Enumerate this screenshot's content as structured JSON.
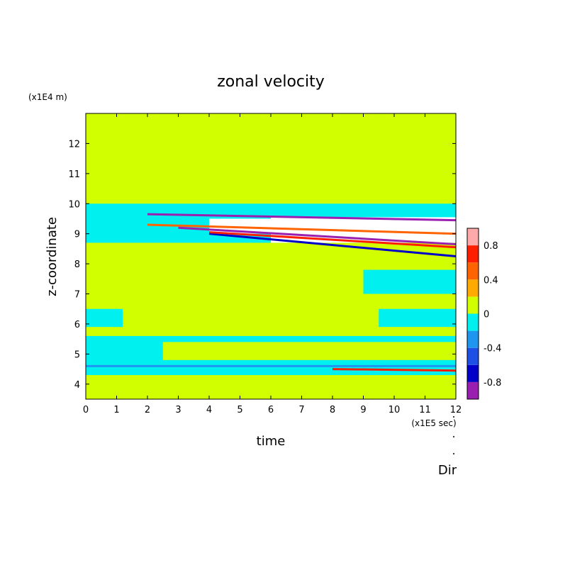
{
  "chart_data": {
    "type": "heatmap",
    "title": "zonal velocity",
    "xlabel": "time",
    "ylabel": "z-coordinate",
    "x_unit": "(x1E5 sec)",
    "y_unit": "(x1E4 m)",
    "xlim": [
      0,
      12
    ],
    "ylim": [
      3.5,
      13
    ],
    "x_ticks": [
      "0",
      "1",
      "2",
      "3",
      "4",
      "5",
      "6",
      "7",
      "8",
      "9",
      "10",
      "11",
      "12"
    ],
    "y_ticks": [
      "4",
      "5",
      "6",
      "7",
      "8",
      "9",
      "10",
      "11",
      "12"
    ],
    "colorbar": {
      "levels": [
        -1.0,
        -0.8,
        -0.6,
        -0.4,
        -0.2,
        0,
        0.2,
        0.4,
        0.6,
        0.8,
        1.0
      ],
      "colors": [
        "#9a1fb0",
        "#0000c8",
        "#1e50e6",
        "#1e96f0",
        "#00f0f0",
        "#d2ff00",
        "#ffaa00",
        "#ff6400",
        "#ff1e00",
        "#ffaaaa"
      ],
      "tick_labels": [
        "0.8",
        "0.4",
        "0",
        "-0.4",
        "-0.8"
      ],
      "tick_values": [
        0.8,
        0.4,
        0,
        -0.4,
        -0.8
      ]
    },
    "regions": [
      {
        "x": [
          0,
          12
        ],
        "z": [
          3.5,
          13
        ],
        "value": 0.1
      },
      {
        "x": [
          0,
          12
        ],
        "z": [
          4.3,
          4.6
        ],
        "value": -0.1
      },
      {
        "x": [
          0,
          12
        ],
        "z": [
          4.6,
          5.6
        ],
        "value": -0.1
      },
      {
        "x": [
          2.5,
          12
        ],
        "z": [
          4.8,
          5.4
        ],
        "value": 0.1
      },
      {
        "x": [
          0,
          12
        ],
        "z": [
          8.7,
          10.0
        ],
        "value": -0.1
      },
      {
        "x": [
          9.0,
          12
        ],
        "z": [
          7.0,
          7.8
        ],
        "value": -0.1
      },
      {
        "x": [
          9.5,
          12
        ],
        "z": [
          5.9,
          6.5
        ],
        "value": -0.1
      },
      {
        "x": [
          0,
          1.2
        ],
        "z": [
          5.9,
          6.5
        ],
        "value": -0.1
      },
      {
        "x": [
          4.0,
          12
        ],
        "z": [
          9.0,
          9.5
        ],
        "value": 1.2
      },
      {
        "x": [
          6.0,
          12
        ],
        "z": [
          8.7,
          9.55
        ],
        "value": 1.2
      }
    ],
    "streaks": [
      {
        "x": [
          2.0,
          12
        ],
        "z0": 9.65,
        "z1": 9.45,
        "value": -0.9
      },
      {
        "x": [
          3.0,
          12
        ],
        "z0": 9.2,
        "z1": 8.65,
        "value": -0.9
      },
      {
        "x": [
          4.0,
          12
        ],
        "z0": 9.0,
        "z1": 8.25,
        "value": -0.7
      },
      {
        "x": [
          4.0,
          12
        ],
        "z0": 9.05,
        "z1": 8.55,
        "value": 0.7
      },
      {
        "x": [
          2.0,
          12
        ],
        "z0": 9.3,
        "z1": 9.0,
        "value": 0.5
      },
      {
        "x": [
          8.0,
          12
        ],
        "z0": 4.5,
        "z1": 4.45,
        "value": 0.7
      },
      {
        "x": [
          0,
          12
        ],
        "z0": 4.6,
        "z1": 4.6,
        "value": -0.3
      }
    ],
    "dir_label": "Dir"
  }
}
